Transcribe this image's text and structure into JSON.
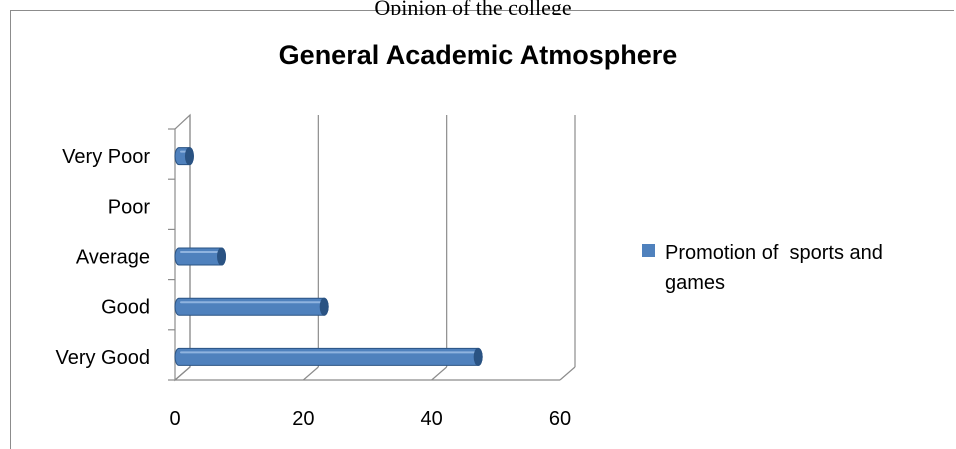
{
  "top_fragment": "Opinion of the college",
  "chart_data": {
    "type": "bar",
    "orientation": "horizontal",
    "style": "3d-cylinder",
    "title": "General Academic Atmosphere",
    "categories": [
      "Very Good",
      "Good",
      "Average",
      "Poor",
      "Very Poor"
    ],
    "series": [
      {
        "name": "Promotion of  sports and games",
        "values": [
          46,
          22,
          6,
          0,
          1
        ]
      }
    ],
    "xlim": [
      0,
      60
    ],
    "x_ticks": [
      "0",
      "20",
      "40",
      "60"
    ],
    "grid": true,
    "legend_position": "right",
    "colors": {
      "bar": "#4f81bd",
      "bar_dark": "#2a5383",
      "bar_light": "#8fb3df",
      "gridline": "#8c8c8c"
    }
  }
}
